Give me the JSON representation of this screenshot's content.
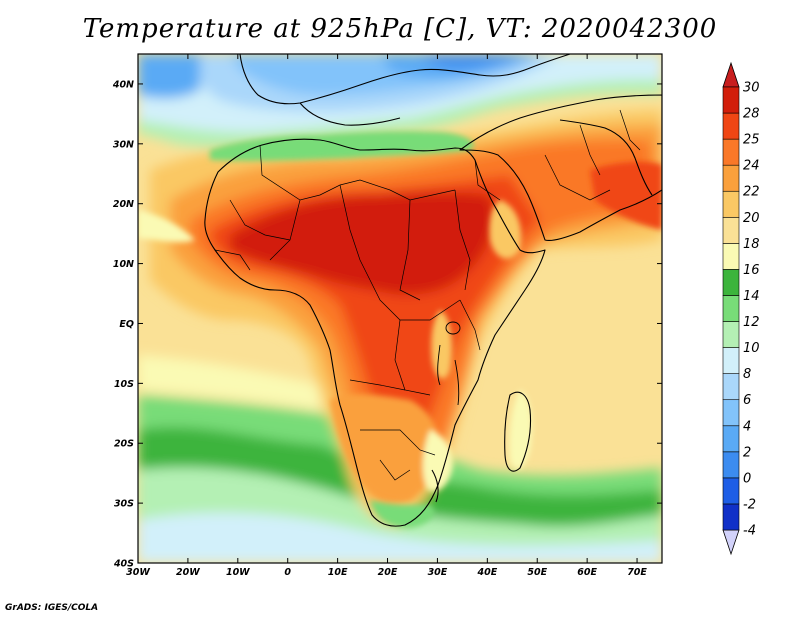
{
  "title": "Temperature at 925hPa [C], VT: 2020042300",
  "credit": "GrADS: IGES/COLA",
  "map": {
    "lon_range": [
      -30,
      75
    ],
    "lat_range": [
      -40,
      45
    ],
    "x_ticks": [
      {
        "lon": -30,
        "label": "30W"
      },
      {
        "lon": -20,
        "label": "20W"
      },
      {
        "lon": -10,
        "label": "10W"
      },
      {
        "lon": 0,
        "label": "0"
      },
      {
        "lon": 10,
        "label": "10E"
      },
      {
        "lon": 20,
        "label": "20E"
      },
      {
        "lon": 30,
        "label": "30E"
      },
      {
        "lon": 40,
        "label": "40E"
      },
      {
        "lon": 50,
        "label": "50E"
      },
      {
        "lon": 60,
        "label": "60E"
      },
      {
        "lon": 70,
        "label": "70E"
      }
    ],
    "y_ticks": [
      {
        "lat": 40,
        "label": "40N"
      },
      {
        "lat": 30,
        "label": "30N"
      },
      {
        "lat": 20,
        "label": "20N"
      },
      {
        "lat": 10,
        "label": "10N"
      },
      {
        "lat": 0,
        "label": "EQ"
      },
      {
        "lat": -10,
        "label": "10S"
      },
      {
        "lat": -20,
        "label": "20S"
      },
      {
        "lat": -30,
        "label": "30S"
      },
      {
        "lat": -40,
        "label": "40S"
      }
    ]
  },
  "colorbar": {
    "levels": [
      "-4",
      "-2",
      "0",
      "2",
      "4",
      "6",
      "8",
      "10",
      "12",
      "14",
      "16",
      "18",
      "20",
      "22",
      "24",
      "25",
      "28",
      "30"
    ],
    "colors": [
      "#0a1a78",
      "#1030c8",
      "#1e5ee6",
      "#3c8cf0",
      "#5aaaf5",
      "#82c3fa",
      "#aad7fa",
      "#d2f0fa",
      "#b4f0b4",
      "#78dc78",
      "#3cb43c",
      "#fafab4",
      "#fae196",
      "#fac864",
      "#faa03c",
      "#fa7828",
      "#f04614",
      "#d21e0a",
      "#b40a0a"
    ],
    "low_arrow_color": "#d2d2fa",
    "high_arrow_color": "#c81e1e"
  }
}
